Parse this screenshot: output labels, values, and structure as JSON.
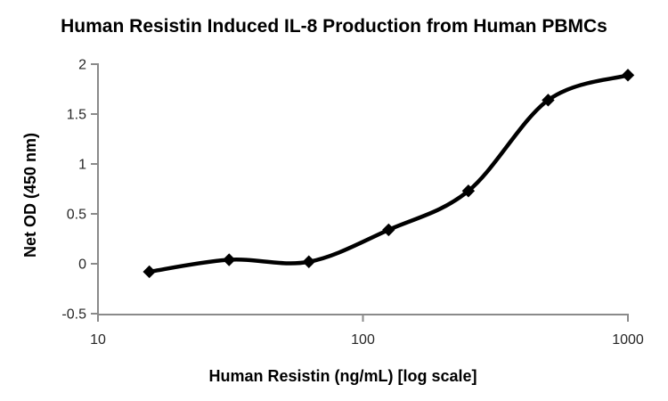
{
  "chart_data": {
    "type": "line",
    "title": "Human Resistin Induced IL-8 Production from Human PBMCs",
    "xlabel": "Human Resistin (ng/mL) [log scale]",
    "ylabel": "Net OD (450 nm)",
    "series": [
      {
        "name": "Net OD (450 nm)",
        "x": [
          15.625,
          31.25,
          62.5,
          125,
          250,
          500,
          1000
        ],
        "y": [
          -0.08,
          0.04,
          0.02,
          0.34,
          0.73,
          1.64,
          1.89
        ]
      }
    ],
    "x_scale": "log",
    "xlim": [
      10,
      1000
    ],
    "ylim": [
      -0.5,
      2
    ],
    "x_ticks": [
      10,
      100,
      1000
    ],
    "x_tick_labels": [
      "10",
      "100",
      "1000"
    ],
    "y_ticks": [
      -0.5,
      0,
      0.5,
      1,
      1.5,
      2
    ],
    "y_tick_labels": [
      "-0.5",
      "0",
      "0.5",
      "1",
      "1.5",
      "2"
    ],
    "grid": false,
    "legend_position": "none",
    "marker": "diamond",
    "smooth": true,
    "colors": {
      "line": "#000000",
      "marker": "#000000",
      "axis": "#8a8a8a",
      "tick_label": "#262626",
      "title_text": "#000000",
      "background": "#ffffff"
    }
  }
}
